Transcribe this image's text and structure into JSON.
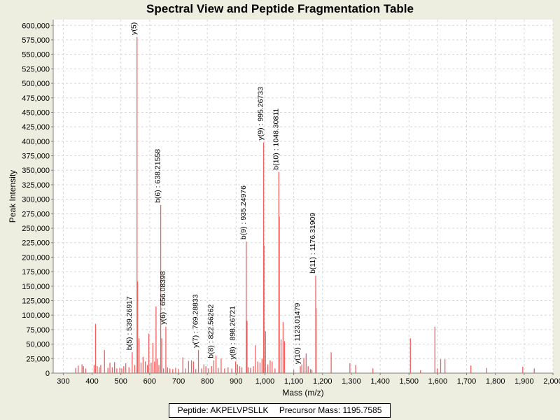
{
  "chart_data": {
    "type": "bar",
    "title": "Spectral View and Peptide Fragmentation Table",
    "xlabel": "Mass (m/z)",
    "ylabel": "Peak Intensity",
    "xlim": [
      265,
      2000
    ],
    "ylim": [
      0,
      610000
    ],
    "x_ticks": [
      300,
      400,
      500,
      600,
      700,
      800,
      900,
      1000,
      1100,
      1200,
      1300,
      1400,
      1500,
      1600,
      1700,
      1800,
      1900,
      2000
    ],
    "x_tick_labels": [
      "300",
      "400",
      "500",
      "600",
      "700",
      "800",
      "900",
      "1,000",
      "1,100",
      "1,200",
      "1,300",
      "1,400",
      "1,500",
      "1,600",
      "1,700",
      "1,800",
      "1,900",
      "2,000"
    ],
    "y_ticks": [
      0,
      25000,
      50000,
      75000,
      100000,
      125000,
      150000,
      175000,
      200000,
      225000,
      250000,
      275000,
      300000,
      325000,
      350000,
      375000,
      400000,
      425000,
      450000,
      475000,
      500000,
      525000,
      550000,
      575000,
      600000
    ],
    "y_tick_labels": [
      "0",
      "25,000",
      "50,000",
      "75,000",
      "100,000",
      "125,000",
      "150,000",
      "175,000",
      "200,000",
      "225,000",
      "250,000",
      "275,000",
      "300,000",
      "325,000",
      "350,000",
      "375,000",
      "400,000",
      "425,000",
      "450,000",
      "475,000",
      "500,000",
      "525,000",
      "550,000",
      "575,000",
      "600,000"
    ],
    "grid": true,
    "bar_color": "#F26060",
    "peaks": [
      {
        "x": 343,
        "y": 9000
      },
      {
        "x": 352,
        "y": 13000
      },
      {
        "x": 365,
        "y": 15000
      },
      {
        "x": 370,
        "y": 12000
      },
      {
        "x": 378,
        "y": 8000
      },
      {
        "x": 407,
        "y": 14000
      },
      {
        "x": 412,
        "y": 85000
      },
      {
        "x": 418,
        "y": 12000
      },
      {
        "x": 425,
        "y": 10000
      },
      {
        "x": 430,
        "y": 14000
      },
      {
        "x": 443,
        "y": 40000
      },
      {
        "x": 455,
        "y": 9000
      },
      {
        "x": 462,
        "y": 18000
      },
      {
        "x": 470,
        "y": 10000
      },
      {
        "x": 478,
        "y": 19000
      },
      {
        "x": 486,
        "y": 8000
      },
      {
        "x": 496,
        "y": 9000
      },
      {
        "x": 503,
        "y": 8000
      },
      {
        "x": 510,
        "y": 12000
      },
      {
        "x": 517,
        "y": 17000
      },
      {
        "x": 528,
        "y": 10000
      },
      {
        "x": 539.26917,
        "y": 36000
      },
      {
        "x": 548,
        "y": 14000
      },
      {
        "x": 556,
        "y": 580000
      },
      {
        "x": 558,
        "y": 158000
      },
      {
        "x": 563,
        "y": 60000
      },
      {
        "x": 570,
        "y": 18000
      },
      {
        "x": 577,
        "y": 28000
      },
      {
        "x": 585,
        "y": 20000
      },
      {
        "x": 592,
        "y": 14000
      },
      {
        "x": 597,
        "y": 68000
      },
      {
        "x": 605,
        "y": 18000
      },
      {
        "x": 611,
        "y": 52000
      },
      {
        "x": 617,
        "y": 20000
      },
      {
        "x": 622,
        "y": 115000
      },
      {
        "x": 627,
        "y": 25000
      },
      {
        "x": 632,
        "y": 14000
      },
      {
        "x": 638.21558,
        "y": 290000
      },
      {
        "x": 642,
        "y": 60000
      },
      {
        "x": 648,
        "y": 8000
      },
      {
        "x": 656.08398,
        "y": 80000
      },
      {
        "x": 662,
        "y": 10000
      },
      {
        "x": 670,
        "y": 8000
      },
      {
        "x": 680,
        "y": 7000
      },
      {
        "x": 690,
        "y": 9000
      },
      {
        "x": 700,
        "y": 7000
      },
      {
        "x": 715,
        "y": 27000
      },
      {
        "x": 725,
        "y": 8000
      },
      {
        "x": 735,
        "y": 21000
      },
      {
        "x": 745,
        "y": 22000
      },
      {
        "x": 752,
        "y": 20000
      },
      {
        "x": 760,
        "y": 7000
      },
      {
        "x": 769.28833,
        "y": 40000
      },
      {
        "x": 780,
        "y": 8000
      },
      {
        "x": 788,
        "y": 15000
      },
      {
        "x": 795,
        "y": 12000
      },
      {
        "x": 804,
        "y": 8000
      },
      {
        "x": 815,
        "y": 12000
      },
      {
        "x": 822.56262,
        "y": 22000
      },
      {
        "x": 830,
        "y": 30000
      },
      {
        "x": 838,
        "y": 9000
      },
      {
        "x": 848,
        "y": 25000
      },
      {
        "x": 860,
        "y": 8000
      },
      {
        "x": 872,
        "y": 10000
      },
      {
        "x": 885,
        "y": 8000
      },
      {
        "x": 898.26721,
        "y": 20000
      },
      {
        "x": 905,
        "y": 15000
      },
      {
        "x": 912,
        "y": 12000
      },
      {
        "x": 920,
        "y": 10000
      },
      {
        "x": 935.24976,
        "y": 227000
      },
      {
        "x": 938,
        "y": 90000
      },
      {
        "x": 943,
        "y": 10000
      },
      {
        "x": 950,
        "y": 9000
      },
      {
        "x": 960,
        "y": 12000
      },
      {
        "x": 967,
        "y": 48000
      },
      {
        "x": 975,
        "y": 20000
      },
      {
        "x": 983,
        "y": 18000
      },
      {
        "x": 990,
        "y": 25000
      },
      {
        "x": 995.26733,
        "y": 398000
      },
      {
        "x": 997,
        "y": 220000
      },
      {
        "x": 1002,
        "y": 72000
      },
      {
        "x": 1010,
        "y": 15000
      },
      {
        "x": 1018,
        "y": 22000
      },
      {
        "x": 1025,
        "y": 20000
      },
      {
        "x": 1035,
        "y": 8000
      },
      {
        "x": 1048.30811,
        "y": 347000
      },
      {
        "x": 1050,
        "y": 270000
      },
      {
        "x": 1056,
        "y": 58000
      },
      {
        "x": 1063,
        "y": 88000
      },
      {
        "x": 1068,
        "y": 55000
      },
      {
        "x": 1100,
        "y": 6000
      },
      {
        "x": 1123.01479,
        "y": 12000
      },
      {
        "x": 1128,
        "y": 15000
      },
      {
        "x": 1135,
        "y": 26000
      },
      {
        "x": 1143,
        "y": 34000
      },
      {
        "x": 1150,
        "y": 12000
      },
      {
        "x": 1158,
        "y": 7000
      },
      {
        "x": 1163,
        "y": 6000
      },
      {
        "x": 1176.31909,
        "y": 168000
      },
      {
        "x": 1178,
        "y": 112000
      },
      {
        "x": 1230,
        "y": 36000
      },
      {
        "x": 1295,
        "y": 17000
      },
      {
        "x": 1315,
        "y": 14000
      },
      {
        "x": 1375,
        "y": 8000
      },
      {
        "x": 1505,
        "y": 60000
      },
      {
        "x": 1540,
        "y": 5000
      },
      {
        "x": 1590,
        "y": 80000
      },
      {
        "x": 1598,
        "y": 8000
      },
      {
        "x": 1610,
        "y": 24000
      },
      {
        "x": 1625,
        "y": 24000
      },
      {
        "x": 1715,
        "y": 13000
      },
      {
        "x": 1770,
        "y": 9000
      },
      {
        "x": 1895,
        "y": 11000
      },
      {
        "x": 1935,
        "y": 8000
      }
    ],
    "annotations": [
      {
        "x": 539.26917,
        "y": 36000,
        "text": "b(5) : 539.26917"
      },
      {
        "x": 556,
        "y": 580000,
        "text": "y(5)"
      },
      {
        "x": 638.21558,
        "y": 290000,
        "text": "b(6) : 638.21558"
      },
      {
        "x": 656.08398,
        "y": 80000,
        "text": "y(6) : 656.08398"
      },
      {
        "x": 769.28833,
        "y": 40000,
        "text": "y(7) : 769.28833"
      },
      {
        "x": 822.56262,
        "y": 22000,
        "text": "b(8) : 822.56262"
      },
      {
        "x": 898.26721,
        "y": 20000,
        "text": "y(8) : 898.26721"
      },
      {
        "x": 935.24976,
        "y": 227000,
        "text": "b(9) : 935.24976"
      },
      {
        "x": 995.26733,
        "y": 398000,
        "text": "y(9) : 995.26733"
      },
      {
        "x": 1048.30811,
        "y": 347000,
        "text": "b(10) : 1048.30811"
      },
      {
        "x": 1123.01479,
        "y": 12000,
        "text": "y(10) : 1123.01479"
      },
      {
        "x": 1176.31909,
        "y": 168000,
        "text": "b(11) : 1176.31909"
      }
    ]
  },
  "legend": {
    "peptide": "Peptide: AKPELVPSLLK",
    "precursor": "Precursor Mass: 1195.7585"
  }
}
